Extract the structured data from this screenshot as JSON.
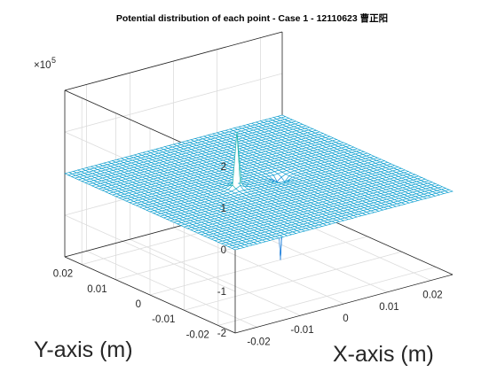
{
  "chart_data": {
    "type": "surface",
    "title": "Potential distribution of each point - Case 1 - 12110623 曹正阳",
    "xlabel": "X-axis (m)",
    "ylabel": "Y-axis (m)",
    "zlabel": "",
    "xlim": [
      -0.025,
      0.025
    ],
    "ylim": [
      -0.025,
      0.025
    ],
    "zlim": [
      -2,
      2
    ],
    "z_exponent_label": "×10",
    "z_exponent_power": "5",
    "x_ticks": [
      "-0.02",
      "-0.01",
      "0",
      "0.01",
      "0.02"
    ],
    "y_ticks": [
      "-0.02",
      "-0.01",
      "0",
      "0.01",
      "0.02"
    ],
    "z_ticks": [
      "-2",
      "-1",
      "0",
      "1",
      "2"
    ],
    "grid": true,
    "colormap": "parula",
    "charges": [
      {
        "x": -0.005,
        "y": 0.0,
        "peak_z": 1.35
      },
      {
        "x": 0.005,
        "y": 0.0,
        "peak_z": -2.0
      }
    ],
    "baseline_z": 0
  }
}
